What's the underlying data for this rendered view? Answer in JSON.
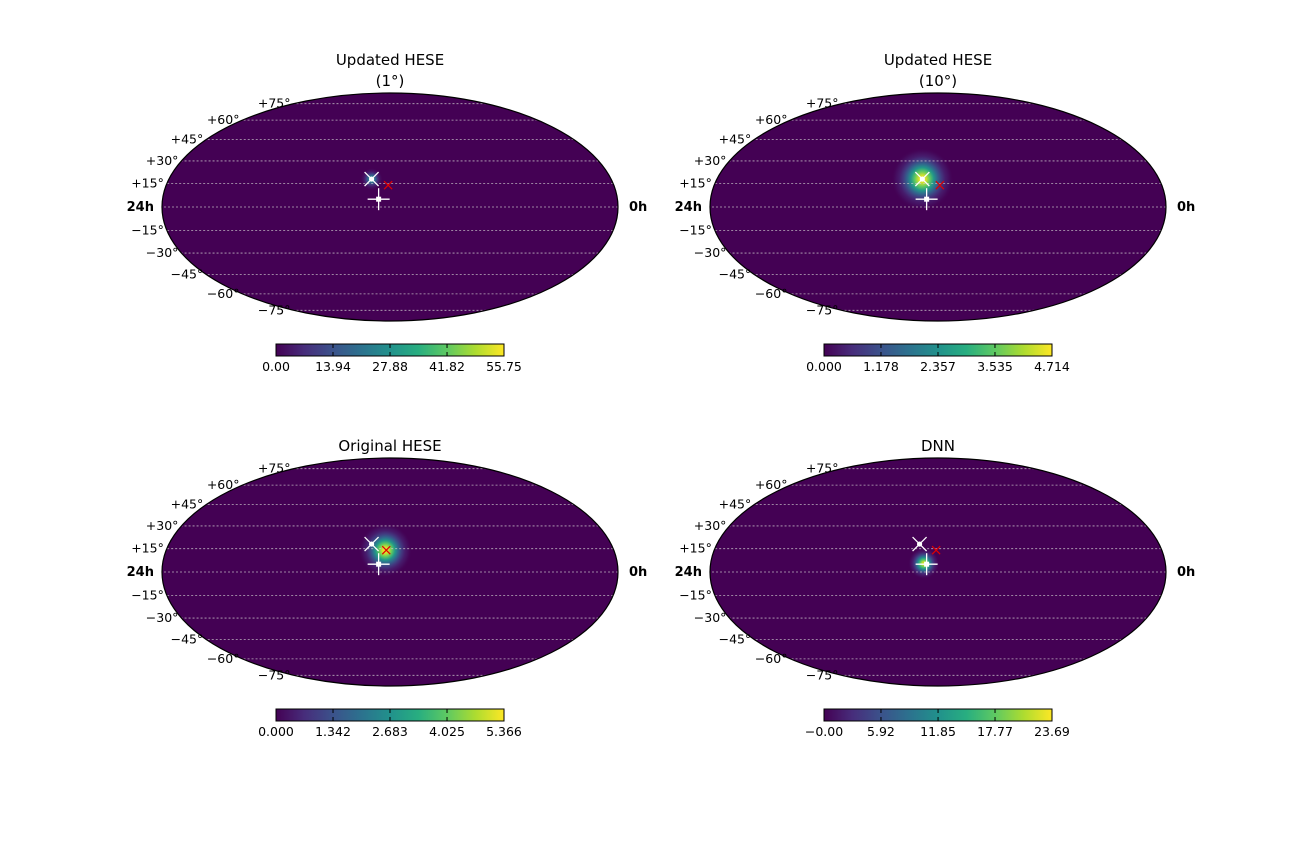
{
  "chart_data": [
    {
      "type": "heatmap",
      "projection": "mollweide",
      "title_lines": [
        "Updated HESE",
        "(1°)"
      ],
      "ra_labels": {
        "left": "24h",
        "right": "0h"
      },
      "dec_labels": [
        "+75°",
        "+60°",
        "+45°",
        "+30°",
        "+15°",
        "−15°",
        "−30°",
        "−45°",
        "−60°",
        "−75°"
      ],
      "grid": true,
      "colormap": "viridis",
      "colorbar": {
        "vmin": 0.0,
        "vmax": 55.75,
        "ticks": [
          "0.00",
          "13.94",
          "27.88",
          "41.82",
          "55.75"
        ]
      },
      "hotspot": {
        "ra_h": 13.0,
        "dec": 18.0,
        "sigma_deg": 2.5,
        "peak_fraction": 0.55
      },
      "markers": [
        {
          "kind": "white-star",
          "ra_h": 13.0,
          "dec": 18.0
        },
        {
          "kind": "red-x",
          "ra_h": 12.1,
          "dec": 14.0
        },
        {
          "kind": "white-cross",
          "ra_h": 12.6,
          "dec": 5.0
        }
      ]
    },
    {
      "type": "heatmap",
      "projection": "mollweide",
      "title_lines": [
        "Updated HESE",
        "(10°)"
      ],
      "ra_labels": {
        "left": "24h",
        "right": "0h"
      },
      "dec_labels": [
        "+75°",
        "+60°",
        "+45°",
        "+30°",
        "+15°",
        "−15°",
        "−30°",
        "−45°",
        "−60°",
        "−75°"
      ],
      "grid": true,
      "colormap": "viridis",
      "colorbar": {
        "vmin": 0.0,
        "vmax": 4.714,
        "ticks": [
          "0.000",
          "1.178",
          "2.357",
          "3.535",
          "4.714"
        ]
      },
      "hotspot": {
        "ra_h": 12.85,
        "dec": 18.0,
        "sigma_deg": 7.0,
        "peak_fraction": 1.0
      },
      "markers": [
        {
          "kind": "white-star",
          "ra_h": 12.85,
          "dec": 18.0
        },
        {
          "kind": "red-x",
          "ra_h": 11.9,
          "dec": 14.0
        },
        {
          "kind": "white-cross",
          "ra_h": 12.6,
          "dec": 5.0
        }
      ]
    },
    {
      "type": "heatmap",
      "projection": "mollweide",
      "title_lines": [
        "Original HESE"
      ],
      "ra_labels": {
        "left": "24h",
        "right": "0h"
      },
      "dec_labels": [
        "+75°",
        "+60°",
        "+45°",
        "+30°",
        "+15°",
        "−15°",
        "−30°",
        "−45°",
        "−60°",
        "−75°"
      ],
      "grid": true,
      "colormap": "viridis",
      "colorbar": {
        "vmin": 0.0,
        "vmax": 5.366,
        "ticks": [
          "0.000",
          "1.342",
          "2.683",
          "4.025",
          "5.366"
        ]
      },
      "hotspot": {
        "ra_h": 12.25,
        "dec": 14.0,
        "sigma_deg": 6.0,
        "peak_fraction": 1.0
      },
      "markers": [
        {
          "kind": "white-star",
          "ra_h": 13.0,
          "dec": 18.0
        },
        {
          "kind": "red-x",
          "ra_h": 12.2,
          "dec": 14.0
        },
        {
          "kind": "white-cross",
          "ra_h": 12.6,
          "dec": 5.0
        }
      ]
    },
    {
      "type": "heatmap",
      "projection": "mollweide",
      "title_lines": [
        "DNN"
      ],
      "ra_labels": {
        "left": "24h",
        "right": "0h"
      },
      "dec_labels": [
        "+75°",
        "+60°",
        "+45°",
        "+30°",
        "+15°",
        "−15°",
        "−30°",
        "−45°",
        "−60°",
        "−75°"
      ],
      "grid": true,
      "colormap": "viridis",
      "colorbar": {
        "vmin": 0.0,
        "vmax": 23.69,
        "ticks": [
          "−0.00",
          "5.92",
          "11.85",
          "17.77",
          "23.69"
        ]
      },
      "hotspot": {
        "ra_h": 12.75,
        "dec": 5.5,
        "sigma_deg": 3.5,
        "peak_fraction": 0.95
      },
      "markers": [
        {
          "kind": "white-star",
          "ra_h": 13.0,
          "dec": 18.0
        },
        {
          "kind": "red-x",
          "ra_h": 12.1,
          "dec": 14.0
        },
        {
          "kind": "white-cross",
          "ra_h": 12.6,
          "dec": 5.0
        }
      ]
    }
  ]
}
